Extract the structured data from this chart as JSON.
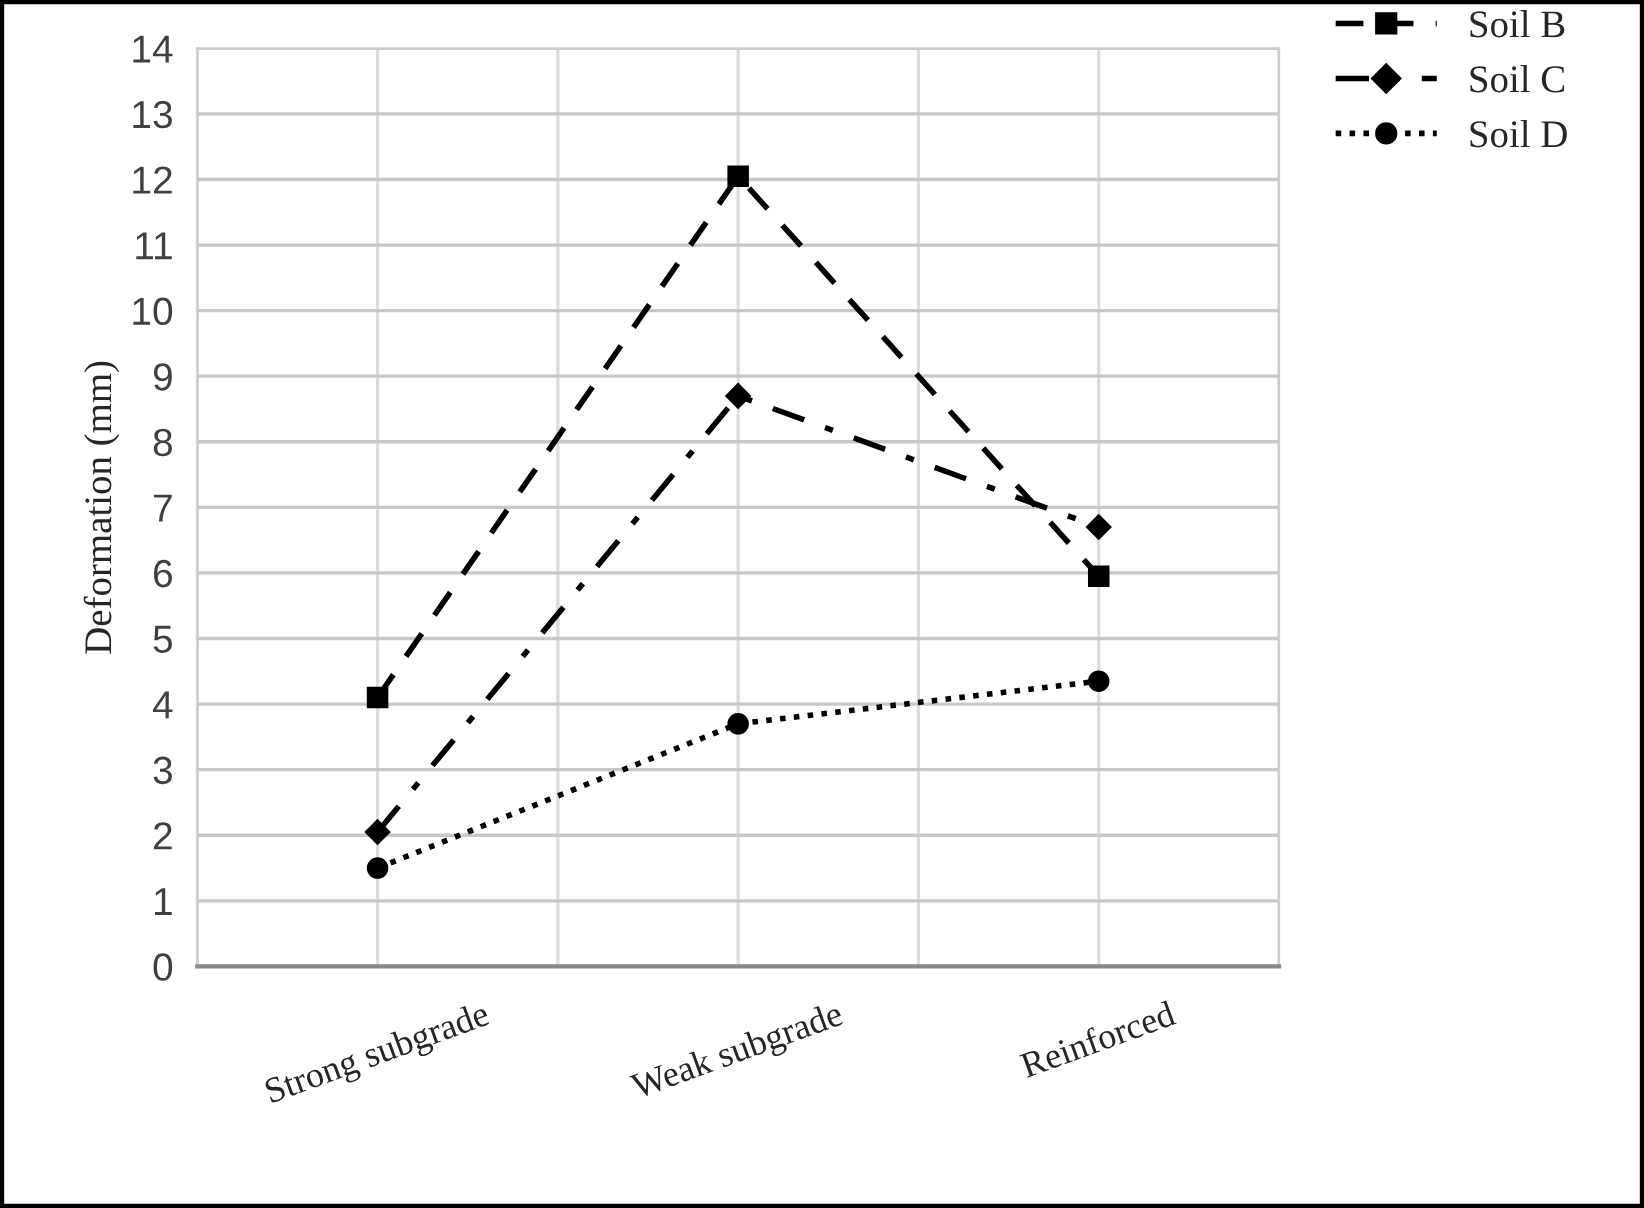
{
  "chart_data": {
    "type": "line",
    "ylabel": "Deformation (mm)",
    "categories": [
      "Strong subgrade",
      "Weak subgrade",
      "Reinforced"
    ],
    "series": [
      {
        "name": "Soil B",
        "color": "#000000",
        "values": [
          4.1,
          12.05,
          5.95
        ],
        "marker": "square",
        "line_style": "dashed"
      },
      {
        "name": "Soil C",
        "color": "#000000",
        "values": [
          2.05,
          8.7,
          6.7
        ],
        "marker": "diamond",
        "line_style": "dashdot"
      },
      {
        "name": "Soil D",
        "color": "#000000",
        "values": [
          1.5,
          3.7,
          4.35
        ],
        "marker": "circle",
        "line_style": "dotted"
      }
    ],
    "ylim": [
      0,
      14
    ],
    "yticks": [
      0,
      1,
      2,
      3,
      4,
      5,
      6,
      7,
      8,
      9,
      10,
      11,
      12,
      13,
      14
    ],
    "grid": true,
    "legend": "top right"
  }
}
